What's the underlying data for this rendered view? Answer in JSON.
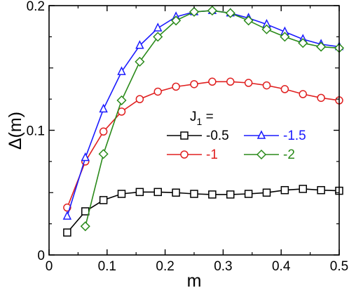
{
  "chart_data": {
    "type": "line",
    "xlabel": "m",
    "ylabel": "Δ(m)",
    "xlim": [
      0,
      0.5
    ],
    "ylim": [
      0,
      0.2
    ],
    "xticks": [
      "0",
      "0.1",
      "0.2",
      "0.3",
      "0.4",
      "0.5"
    ],
    "yticks": [
      "0",
      "0.1",
      "0.2"
    ],
    "legend_title": "J",
    "legend_subscript": "1",
    "legend_suffix": " =",
    "legend_placement": "center",
    "grid": false,
    "series": [
      {
        "name": "-0.5",
        "color": "#000000",
        "marker": "square",
        "x": [
          0.03125,
          0.0625,
          0.09375,
          0.125,
          0.15625,
          0.1875,
          0.21875,
          0.25,
          0.28125,
          0.3125,
          0.34375,
          0.375,
          0.40625,
          0.4375,
          0.46875,
          0.5
        ],
        "y": [
          0.018,
          0.035,
          0.044,
          0.049,
          0.0505,
          0.0505,
          0.05,
          0.049,
          0.0485,
          0.0485,
          0.049,
          0.05,
          0.052,
          0.053,
          0.052,
          0.0515
        ]
      },
      {
        "name": "-1",
        "color": "#e02020",
        "marker": "circle",
        "x": [
          0.03125,
          0.0625,
          0.09375,
          0.125,
          0.15625,
          0.1875,
          0.21875,
          0.25,
          0.28125,
          0.3125,
          0.34375,
          0.375,
          0.40625,
          0.4375,
          0.46875,
          0.5
        ],
        "y": [
          0.038,
          0.075,
          0.099,
          0.115,
          0.125,
          0.131,
          0.135,
          0.137,
          0.139,
          0.139,
          0.138,
          0.136,
          0.133,
          0.129,
          0.126,
          0.124
        ]
      },
      {
        "name": "-1.5",
        "color": "#1a1aff",
        "marker": "triangle",
        "x": [
          0.03125,
          0.0625,
          0.09375,
          0.125,
          0.15625,
          0.1875,
          0.21875,
          0.25,
          0.28125,
          0.3125,
          0.34375,
          0.375,
          0.40625,
          0.4375,
          0.46875,
          0.5
        ],
        "y": [
          0.031,
          0.078,
          0.117,
          0.147,
          0.168,
          0.182,
          0.191,
          0.195,
          0.196,
          0.194,
          0.19,
          0.185,
          0.179,
          0.173,
          0.169,
          0.167
        ]
      },
      {
        "name": "-2",
        "color": "#2a8a1a",
        "marker": "diamond",
        "x": [
          0.0625,
          0.09375,
          0.125,
          0.15625,
          0.1875,
          0.21875,
          0.25,
          0.28125,
          0.3125,
          0.34375,
          0.375,
          0.40625,
          0.4375,
          0.46875,
          0.5
        ],
        "y": [
          0.023,
          0.081,
          0.124,
          0.155,
          0.175,
          0.188,
          0.195,
          0.196,
          0.194,
          0.188,
          0.181,
          0.175,
          0.17,
          0.167,
          0.166
        ]
      }
    ]
  }
}
